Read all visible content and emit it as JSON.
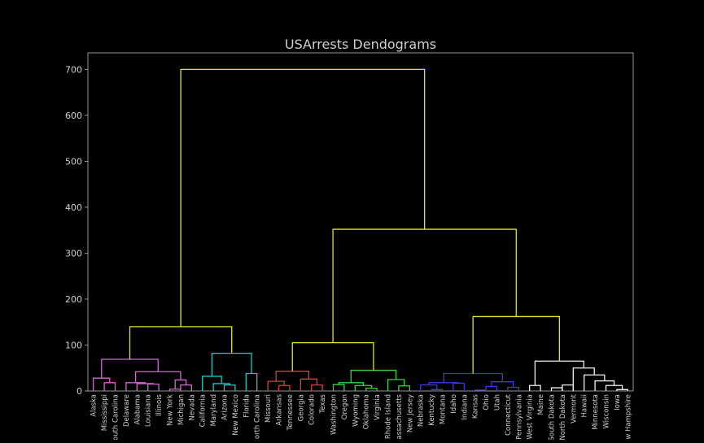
{
  "chart_data": {
    "type": "dendrogram",
    "title": "USArrests Dendograms",
    "xlabel": "",
    "ylabel": "",
    "ylim": [
      0,
      736
    ],
    "yticks": [
      0,
      100,
      200,
      300,
      400,
      500,
      600,
      700
    ],
    "leaves": [
      "Alaska",
      "Mississippi",
      "South Carolina",
      "Delaware",
      "Alabama",
      "Louisiana",
      "Illinois",
      "New York",
      "Michigan",
      "Nevada",
      "California",
      "Maryland",
      "Arizona",
      "New Mexico",
      "Florida",
      "North Carolina",
      "Missouri",
      "Arkansas",
      "Tennessee",
      "Georgia",
      "Colorado",
      "Texas",
      "Washington",
      "Oregon",
      "Wyoming",
      "Oklahoma",
      "Virginia",
      "Rhode Island",
      "Massachusetts",
      "New Jersey",
      "Nebraska",
      "Kentucky",
      "Montana",
      "Idaho",
      "Indiana",
      "Kansas",
      "Ohio",
      "Utah",
      "Connecticut",
      "Pennsylvania",
      "West Virginia",
      "Maine",
      "South Dakota",
      "North Dakota",
      "Vermont",
      "Hawaii",
      "Minnesota",
      "Wisconsin",
      "Iowa",
      "New Hampshire"
    ],
    "cluster_colors": {
      "c1": "#d466d4",
      "c2": "#22c5c5",
      "c3": "#e03b3b",
      "c4": "#3cd43c",
      "c5": "#3b3bdc",
      "c6": "#f0f0f0",
      "above": "#e3e32a"
    },
    "links": [
      {
        "a": 1,
        "b": 2,
        "h": 18,
        "color": "c1"
      },
      {
        "a": 0,
        "b": 1.5,
        "h": 28,
        "color": "c1"
      },
      {
        "a": 5,
        "b": 6,
        "h": 15,
        "color": "c1"
      },
      {
        "a": 4,
        "b": 5.5,
        "h": 16,
        "color": "c1"
      },
      {
        "a": 3,
        "b": 4.75,
        "h": 18,
        "color": "c1"
      },
      {
        "a": 7,
        "b": 8,
        "h": 4,
        "color": "c1"
      },
      {
        "a": 8,
        "b": 9,
        "h": 13,
        "color": "c1"
      },
      {
        "a": 7.5,
        "b": 8.5,
        "h": 24,
        "color": "c1"
      },
      {
        "a": 3.875,
        "b": 8,
        "h": 42,
        "color": "c1"
      },
      {
        "a": 0.75,
        "b": 5.9375,
        "h": 69,
        "color": "c1"
      },
      {
        "a": 12,
        "b": 13,
        "h": 13,
        "color": "c2"
      },
      {
        "a": 11,
        "b": 12.5,
        "h": 16,
        "color": "c2"
      },
      {
        "a": 10,
        "b": 11.75,
        "h": 32,
        "color": "c2"
      },
      {
        "a": 14,
        "b": 15,
        "h": 38,
        "color": "c2"
      },
      {
        "a": 10.875,
        "b": 14.5,
        "h": 82,
        "color": "c2"
      },
      {
        "a": 17,
        "b": 18,
        "h": 12,
        "color": "c3"
      },
      {
        "a": 16,
        "b": 17.5,
        "h": 21,
        "color": "c3"
      },
      {
        "a": 20,
        "b": 21,
        "h": 13,
        "color": "c3"
      },
      {
        "a": 19,
        "b": 20.5,
        "h": 26,
        "color": "c3"
      },
      {
        "a": 16.75,
        "b": 19.75,
        "h": 43,
        "color": "c3"
      },
      {
        "a": 22,
        "b": 23,
        "h": 14,
        "color": "c4"
      },
      {
        "a": 25,
        "b": 26,
        "h": 6,
        "color": "c4"
      },
      {
        "a": 24,
        "b": 25.5,
        "h": 12,
        "color": "c4"
      },
      {
        "a": 22.5,
        "b": 24.75,
        "h": 18,
        "color": "c4"
      },
      {
        "a": 28,
        "b": 29,
        "h": 11,
        "color": "c4"
      },
      {
        "a": 27,
        "b": 28.5,
        "h": 25,
        "color": "c4"
      },
      {
        "a": 23.625,
        "b": 27.75,
        "h": 45,
        "color": "c4"
      },
      {
        "a": 31,
        "b": 32,
        "h": 3,
        "color": "c5"
      },
      {
        "a": 30,
        "b": 31.5,
        "h": 13,
        "color": "c5"
      },
      {
        "a": 33,
        "b": 34,
        "h": 17,
        "color": "c5"
      },
      {
        "a": 30.75,
        "b": 33.5,
        "h": 18,
        "color": "c5"
      },
      {
        "a": 35,
        "b": 36,
        "h": 2,
        "color": "c5"
      },
      {
        "a": 36,
        "b": 37,
        "h": 10,
        "color": "c5"
      },
      {
        "a": 38,
        "b": 39,
        "h": 8,
        "color": "c5"
      },
      {
        "a": 36.5,
        "b": 38.5,
        "h": 20,
        "color": "c5"
      },
      {
        "a": 32.125,
        "b": 37.5,
        "h": 38,
        "color": "c5"
      },
      {
        "a": 42,
        "b": 43,
        "h": 7,
        "color": "c6"
      },
      {
        "a": 40,
        "b": 41,
        "h": 12,
        "color": "c6"
      },
      {
        "a": 43,
        "b": 44,
        "h": 13,
        "color": "c6"
      },
      {
        "a": 48,
        "b": 49,
        "h": 3,
        "color": "c6"
      },
      {
        "a": 47,
        "b": 48.5,
        "h": 12,
        "color": "c6"
      },
      {
        "a": 46,
        "b": 47.75,
        "h": 22,
        "color": "c6"
      },
      {
        "a": 45,
        "b": 46.875,
        "h": 35,
        "color": "c6"
      },
      {
        "a": 44,
        "b": 45.9375,
        "h": 50,
        "color": "c6"
      },
      {
        "a": 40.5,
        "b": 44.96875,
        "h": 65,
        "color": "c6"
      },
      {
        "a": 12.6875,
        "b": 3.34375,
        "h": 140,
        "color": "above"
      },
      {
        "a": 18.25,
        "b": 25.6875,
        "h": 105,
        "color": "above"
      },
      {
        "a": 34.8125,
        "b": 42.734375,
        "h": 162,
        "color": "above"
      },
      {
        "a": 21.96875,
        "b": 38.7734375,
        "h": 352,
        "color": "above"
      },
      {
        "a": 8.015625,
        "b": 30.37109375,
        "h": 700,
        "color": "above"
      }
    ]
  }
}
